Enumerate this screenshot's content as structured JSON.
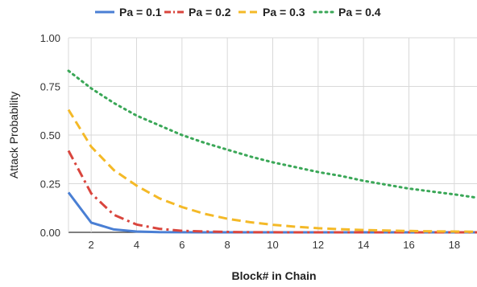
{
  "chart_data": {
    "type": "line",
    "xlabel": "Block# in Chain",
    "ylabel": "Attack Probability",
    "x_ticks": [
      2,
      4,
      6,
      8,
      10,
      12,
      14,
      16,
      18
    ],
    "y_ticks": [
      "0.00",
      "0.25",
      "0.50",
      "0.75",
      "1.00"
    ],
    "xlim": [
      1,
      19
    ],
    "ylim": [
      0,
      1
    ],
    "grid": true,
    "legend_position": "top",
    "x": [
      1,
      2,
      3,
      4,
      5,
      6,
      7,
      8,
      9,
      10,
      11,
      12,
      13,
      14,
      15,
      16,
      17,
      18,
      19
    ],
    "series": [
      {
        "name": "Pa = 0.1",
        "color": "#4a7fd4",
        "dash": "solid",
        "values": [
          0.205,
          0.05,
          0.015,
          0.004,
          0.001,
          0.0003,
          0.0001,
          0,
          0,
          0,
          0,
          0,
          0,
          0,
          0,
          0,
          0,
          0,
          0
        ]
      },
      {
        "name": "Pa = 0.2",
        "color": "#d9453d",
        "dash": "dashdot",
        "values": [
          0.42,
          0.2,
          0.09,
          0.04,
          0.018,
          0.008,
          0.004,
          0.002,
          0.001,
          0.0005,
          0,
          0,
          0,
          0,
          0,
          0,
          0,
          0,
          0
        ]
      },
      {
        "name": "Pa = 0.3",
        "color": "#f4b927",
        "dash": "dash",
        "values": [
          0.63,
          0.44,
          0.32,
          0.24,
          0.175,
          0.13,
          0.095,
          0.07,
          0.052,
          0.039,
          0.029,
          0.021,
          0.016,
          0.012,
          0.009,
          0.007,
          0.005,
          0.004,
          0.003
        ]
      },
      {
        "name": "Pa = 0.4",
        "color": "#3aa757",
        "dash": "dot",
        "values": [
          0.83,
          0.74,
          0.665,
          0.6,
          0.55,
          0.5,
          0.46,
          0.425,
          0.39,
          0.36,
          0.335,
          0.31,
          0.29,
          0.265,
          0.245,
          0.225,
          0.21,
          0.195,
          0.178
        ]
      }
    ]
  }
}
